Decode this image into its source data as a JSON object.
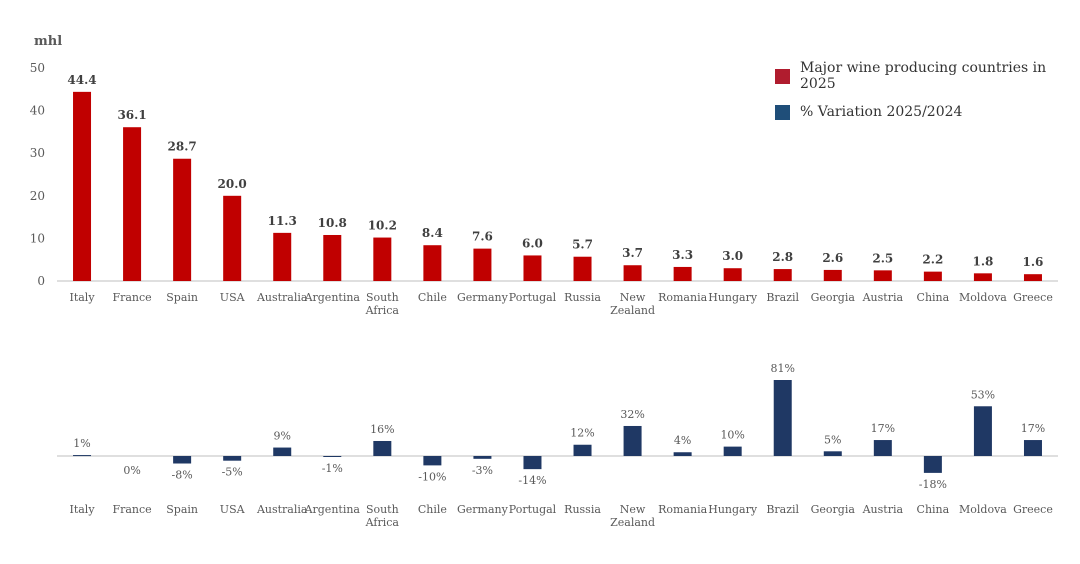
{
  "colors": {
    "production": "#c00000",
    "variation": "#1f3864",
    "axis": "#bfbfbf",
    "text": "#595959"
  },
  "legend": [
    {
      "label": "Major wine producing countries in 2025",
      "color": "#b01c2e"
    },
    {
      "label": "% Variation 2025/2024",
      "color": "#1f4e79"
    }
  ],
  "chart_data": [
    {
      "type": "bar",
      "ylabel": "mhl",
      "ylim": [
        0,
        50
      ],
      "yticks": [
        0,
        10,
        20,
        30,
        40,
        50
      ],
      "categories": [
        "Italy",
        "France",
        "Spain",
        "USA",
        "Australia",
        "Argentina",
        "South Africa",
        "Chile",
        "Germany",
        "Portugal",
        "Russia",
        "New Zealand",
        "Romania",
        "Hungary",
        "Brazil",
        "Georgia",
        "Austria",
        "China",
        "Moldova",
        "Greece"
      ],
      "values": [
        44.4,
        36.1,
        28.7,
        20.0,
        11.3,
        10.8,
        10.2,
        8.4,
        7.6,
        6.0,
        5.7,
        3.7,
        3.3,
        3.0,
        2.8,
        2.6,
        2.5,
        2.2,
        1.8,
        1.6
      ],
      "data_labels": [
        "44.4",
        "36.1",
        "28.7",
        "20.0",
        "11.3",
        "10.8",
        "10.2",
        "8.4",
        "7.6",
        "6.0",
        "5.7",
        "3.7",
        "3.3",
        "3.0",
        "2.8",
        "2.6",
        "2.5",
        "2.2",
        "1.8",
        "1.6"
      ],
      "series_name": "Major wine producing countries in 2025",
      "grid": false
    },
    {
      "type": "bar",
      "categories": [
        "Italy",
        "France",
        "Spain",
        "USA",
        "Australia",
        "Argentina",
        "South Africa",
        "Chile",
        "Germany",
        "Portugal",
        "Russia",
        "New Zealand",
        "Romania",
        "Hungary",
        "Brazil",
        "Georgia",
        "Austria",
        "China",
        "Moldova",
        "Greece"
      ],
      "values": [
        1,
        0,
        -8,
        -5,
        9,
        -1,
        16,
        -10,
        -3,
        -14,
        12,
        32,
        4,
        10,
        81,
        5,
        17,
        -18,
        53,
        17
      ],
      "data_labels": [
        "1%",
        "0%",
        "-8%",
        "-5%",
        "9%",
        "-1%",
        "16%",
        "-10%",
        "-3%",
        "-14%",
        "12%",
        "32%",
        "4%",
        "10%",
        "81%",
        "5%",
        "17%",
        "-18%",
        "53%",
        "17%"
      ],
      "series_name": "% Variation 2025/2024",
      "grid": false
    }
  ]
}
